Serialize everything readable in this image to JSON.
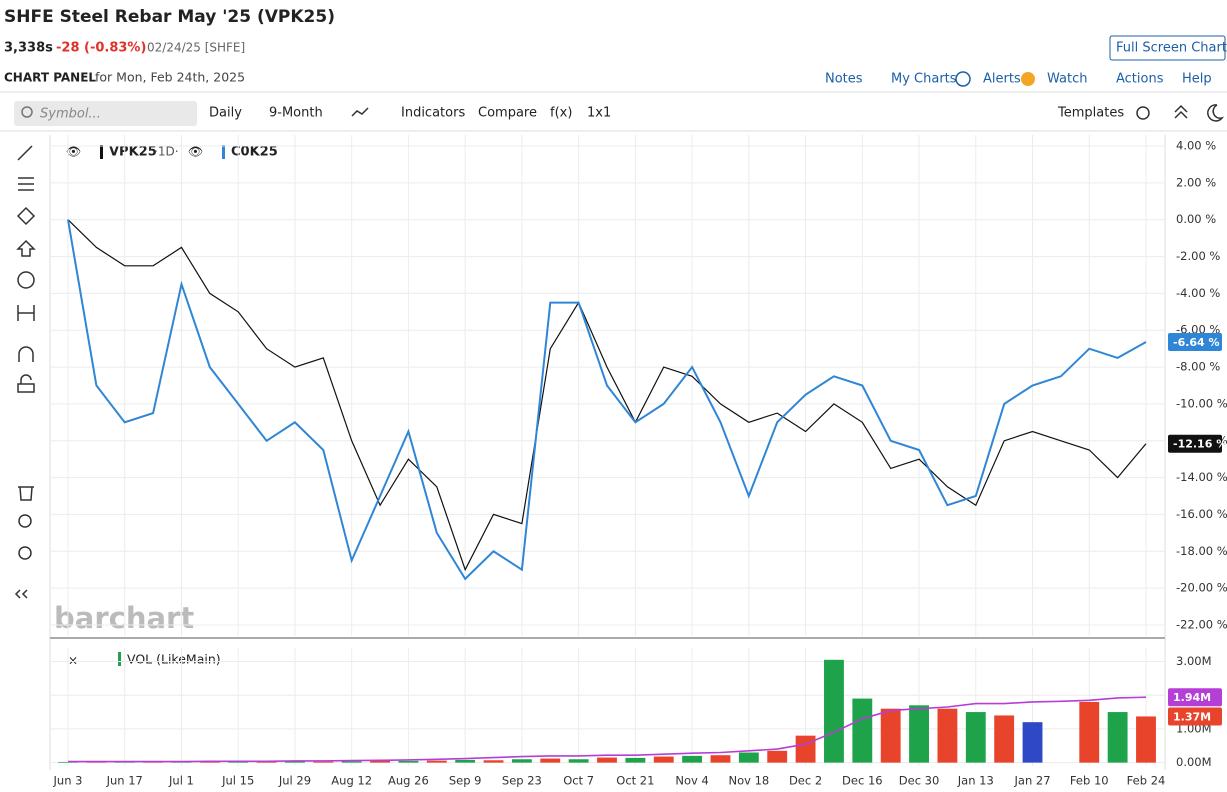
{
  "header": {
    "title": "SHFE Steel Rebar May '25 (VPK25)",
    "price": "3,338s",
    "change": "-28 (-0.83%)",
    "date": "02/24/25 [SHFE]",
    "full_screen": "Full Screen Chart",
    "panel": "CHART PANEL",
    "panel_date": "for Mon, Feb 24th, 2025",
    "links": [
      "Notes",
      "My Charts",
      "Alerts",
      "Watch",
      "Actions",
      "Help"
    ]
  },
  "toolbar": {
    "symbol_placeholder": "Symbol...",
    "items": [
      "Daily",
      "9-Month",
      "Indicators",
      "Compare",
      "f(x)",
      "1x1"
    ],
    "templates": "Templates"
  },
  "watermark": "barchart",
  "chart_data": [
    {
      "type": "line",
      "ylim": [
        -22.6,
        4.6
      ],
      "yticks": [
        {
          "value": 4,
          "label": "4.00 %"
        },
        {
          "value": 2,
          "label": "2.00 %"
        },
        {
          "value": 0,
          "label": "0.00 %"
        },
        {
          "value": -2,
          "label": "-2.00 %"
        },
        {
          "value": -4,
          "label": "-4.00 %"
        },
        {
          "value": -6,
          "label": "-6.00 %"
        },
        {
          "value": -8,
          "label": "-8.00 %"
        },
        {
          "value": -10,
          "label": "-10.00 %"
        },
        {
          "value": -12,
          "label": "-12.00 %"
        },
        {
          "value": -14,
          "label": "-14.00 %"
        },
        {
          "value": -16,
          "label": "-16.00 %"
        },
        {
          "value": -18,
          "label": "-18.00 %"
        },
        {
          "value": -20,
          "label": "-20.00 %"
        },
        {
          "value": -22,
          "label": "-22.00 %"
        }
      ],
      "grid": true,
      "series": [
        {
          "name": "VPK25",
          "interval": "·1D·",
          "color": "#111111",
          "values": [
            0,
            -1.5,
            -2.5,
            -2.5,
            -1.5,
            -4,
            -5,
            -7,
            -8,
            -7.5,
            -12,
            -15.5,
            -13,
            -14.5,
            -19,
            -16,
            -16.5,
            -7,
            -4.5,
            -8,
            -11,
            -8,
            -8.5,
            -10,
            -11,
            -10.5,
            -11.5,
            -10,
            -11,
            -13.5,
            -13,
            -14.5,
            -15.5,
            -12,
            -11.5,
            -12,
            -12.5,
            -14,
            -12.16
          ],
          "value_labels": [
            null,
            null,
            null,
            null,
            null,
            null,
            null,
            null,
            null,
            null,
            null,
            null,
            null,
            null,
            null,
            null,
            null,
            null,
            null,
            null,
            null,
            null,
            null,
            null,
            null,
            null,
            null,
            null,
            null,
            null,
            null,
            null,
            null,
            null,
            null,
            null,
            null,
            null,
            "-12.16 %"
          ]
        },
        {
          "name": "C0K25",
          "color": "#2f86d6",
          "values": [
            0,
            -9,
            -11,
            -10.5,
            -3.5,
            -8,
            -10,
            -12,
            -11,
            -12.5,
            -18.5,
            -15,
            -11.5,
            -17,
            -19.5,
            -18,
            -19,
            -4.5,
            -4.5,
            -9,
            -11,
            -10,
            -8,
            -11,
            -15,
            -11,
            -9.5,
            -8.5,
            -9,
            -12,
            -12.5,
            -15.5,
            -15,
            -10,
            -9,
            -8.5,
            -7,
            -7.5,
            -6.64
          ],
          "value_labels": [
            null,
            null,
            null,
            null,
            null,
            null,
            null,
            null,
            null,
            null,
            null,
            null,
            null,
            null,
            null,
            null,
            null,
            null,
            null,
            null,
            null,
            null,
            null,
            null,
            null,
            null,
            null,
            null,
            null,
            null,
            null,
            null,
            null,
            null,
            null,
            null,
            null,
            null,
            "-6.64 %"
          ]
        }
      ]
    },
    {
      "type": "bar",
      "title": "VOL (LikeMain)",
      "ylim": [
        -0.1,
        3.4
      ],
      "yticks": [
        {
          "value": 0,
          "label": "0.00M"
        },
        {
          "value": 1,
          "label": "1.00M"
        },
        {
          "value": 2,
          "label": "2.00M"
        },
        {
          "value": 3,
          "label": "3.00M"
        }
      ],
      "grid": true,
      "categories": [
        "Jun 3",
        null,
        "Jun 17",
        null,
        "Jul 1",
        null,
        "Jul 15",
        null,
        "Jul 29",
        null,
        "Aug 12",
        null,
        "Aug 26",
        null,
        "Sep 9",
        null,
        "Sep 23",
        null,
        "Oct 7",
        null,
        "Oct 21",
        null,
        "Nov 4",
        null,
        "Nov 18",
        null,
        "Dec 2",
        null,
        "Dec 16",
        null,
        "Dec 30",
        null,
        "Jan 13",
        null,
        "Jan 27",
        null,
        "Feb 10",
        null,
        "Feb 24"
      ],
      "values": [
        0.02,
        0.02,
        0.03,
        0.02,
        0.03,
        0.02,
        0.03,
        0.03,
        0.04,
        0.03,
        0.04,
        0.05,
        0.05,
        0.06,
        0.08,
        0.07,
        0.1,
        0.12,
        0.1,
        0.15,
        0.14,
        0.18,
        0.2,
        0.22,
        0.3,
        0.35,
        0.8,
        3.05,
        1.9,
        1.6,
        1.7,
        1.6,
        1.5,
        1.4,
        1.2,
        null,
        1.8,
        1.5,
        1.37
      ],
      "colors": [
        "#1fa34a",
        "#e8442b",
        "#1fa34a",
        "#e8442b",
        "#1fa34a",
        "#e8442b",
        "#1fa34a",
        "#e8442b",
        "#1fa34a",
        "#e8442b",
        "#1fa34a",
        "#e8442b",
        "#1fa34a",
        "#e8442b",
        "#1fa34a",
        "#e8442b",
        "#1fa34a",
        "#e8442b",
        "#1fa34a",
        "#e8442b",
        "#1fa34a",
        "#e8442b",
        "#1fa34a",
        "#e8442b",
        "#1fa34a",
        "#e8442b",
        "#e8442b",
        "#1fa34a",
        "#1fa34a",
        "#e8442b",
        "#1fa34a",
        "#e8442b",
        "#1fa34a",
        "#e8442b",
        "#2f49c6",
        null,
        "#e8442b",
        "#1fa34a",
        "#e8442b"
      ],
      "value_labels": [
        null,
        null,
        null,
        null,
        null,
        null,
        null,
        null,
        null,
        null,
        null,
        null,
        null,
        null,
        null,
        null,
        null,
        null,
        null,
        null,
        null,
        null,
        null,
        null,
        null,
        null,
        null,
        null,
        null,
        null,
        null,
        null,
        null,
        null,
        null,
        null,
        null,
        null,
        "1.37M"
      ],
      "average": {
        "color": "#b53fd6",
        "values": [
          0.03,
          0.03,
          0.03,
          0.03,
          0.03,
          0.04,
          0.04,
          0.04,
          0.05,
          0.05,
          0.06,
          0.07,
          0.08,
          0.1,
          0.12,
          0.15,
          0.18,
          0.2,
          0.2,
          0.22,
          0.22,
          0.25,
          0.28,
          0.3,
          0.35,
          0.4,
          0.55,
          0.9,
          1.3,
          1.55,
          1.6,
          1.65,
          1.75,
          1.75,
          1.8,
          1.82,
          1.85,
          1.92,
          1.94
        ],
        "value_labels": [
          null,
          null,
          null,
          null,
          null,
          null,
          null,
          null,
          null,
          null,
          null,
          null,
          null,
          null,
          null,
          null,
          null,
          null,
          null,
          null,
          null,
          null,
          null,
          null,
          null,
          null,
          null,
          null,
          null,
          null,
          null,
          null,
          null,
          null,
          null,
          null,
          null,
          null,
          "1.94M"
        ]
      }
    }
  ]
}
